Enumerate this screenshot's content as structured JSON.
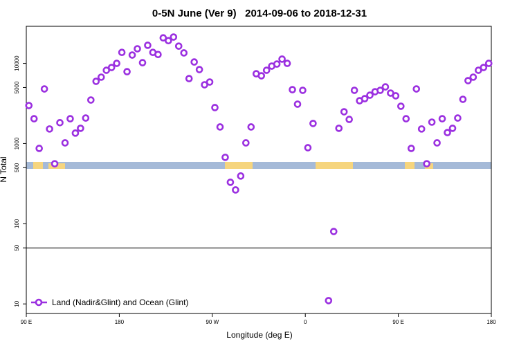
{
  "chart_data": {
    "type": "scatter",
    "title": "0-5N June (Ver 9)   2014-09-06 to 2018-12-31",
    "x_label": "Longitude (deg E)",
    "y_label": "N Total",
    "log_y": true,
    "legend_position": "bottom-left",
    "reference_line": 50,
    "xlim": [
      90,
      540
    ],
    "xticks": [
      {
        "value": 90,
        "label": "90 E"
      },
      {
        "value": 180,
        "label": "180"
      },
      {
        "value": 270,
        "label": "90 W"
      },
      {
        "value": 360,
        "label": "0"
      },
      {
        "value": 450,
        "label": "90 E"
      },
      {
        "value": 540,
        "label": "180"
      }
    ],
    "ylim": [
      7.6,
      29000
    ],
    "yticks": [
      10,
      50,
      100,
      500,
      1000,
      5000,
      10000
    ],
    "series": [
      {
        "name": "Land (Nadir&Glint) and Ocean (Glint)",
        "color": "#9b30e0",
        "x": [
          92.5,
          97.5,
          102.5,
          107.5,
          112.5,
          117.5,
          122.5,
          127.5,
          132.5,
          137.5,
          142.5,
          147.5,
          152.5,
          157.5,
          162.5,
          167.5,
          172.5,
          177.5,
          182.5,
          187.5,
          192.5,
          197.5,
          202.5,
          207.5,
          212.5,
          217.5,
          222.5,
          227.5,
          232.5,
          237.5,
          242.5,
          247.5,
          252.5,
          257.5,
          262.5,
          267.5,
          272.5,
          277.5,
          282.5,
          287.5,
          292.5,
          297.5,
          302.5,
          307.5,
          312.5,
          317.5,
          322.5,
          327.5,
          332.5,
          337.5,
          342.5,
          347.5,
          352.5,
          357.5,
          362.5,
          367.5,
          382.5,
          387.5,
          392.5,
          397.5,
          402.5,
          407.5,
          412.5,
          417.5,
          422.5,
          427.5,
          432.5,
          437.5,
          442.5,
          447.5,
          452.5,
          457.5,
          462.5,
          467.5,
          472.5,
          477.5,
          482.5,
          487.5,
          492.5,
          497.5,
          502.5,
          507.5,
          512.5,
          517.5,
          522.5,
          527.5,
          532.5,
          537.5
        ],
        "values": [
          2980,
          2040,
          870,
          4800,
          1520,
          560,
          1820,
          1020,
          2040,
          1350,
          1550,
          2080,
          3490,
          5970,
          6730,
          8200,
          8880,
          10000,
          13700,
          7880,
          12700,
          15200,
          10200,
          16800,
          13700,
          12900,
          20800,
          19200,
          21300,
          16400,
          13500,
          6460,
          10400,
          8370,
          5410,
          5850,
          2810,
          1610,
          673,
          329,
          264,
          394,
          1020,
          1610,
          7420,
          7000,
          8200,
          9240,
          9800,
          11300,
          10000,
          4700,
          3100,
          4610,
          887,
          1780,
          11,
          80,
          1550,
          2490,
          2000,
          4610,
          3420,
          3630,
          4010,
          4430,
          4610,
          5090,
          4260,
          3940,
          2920,
          2040,
          870,
          4800,
          1520,
          560,
          1850,
          1020,
          2040,
          1370,
          1550,
          2080,
          3560,
          6090,
          6730,
          8200,
          8880,
          10000
        ]
      }
    ]
  }
}
